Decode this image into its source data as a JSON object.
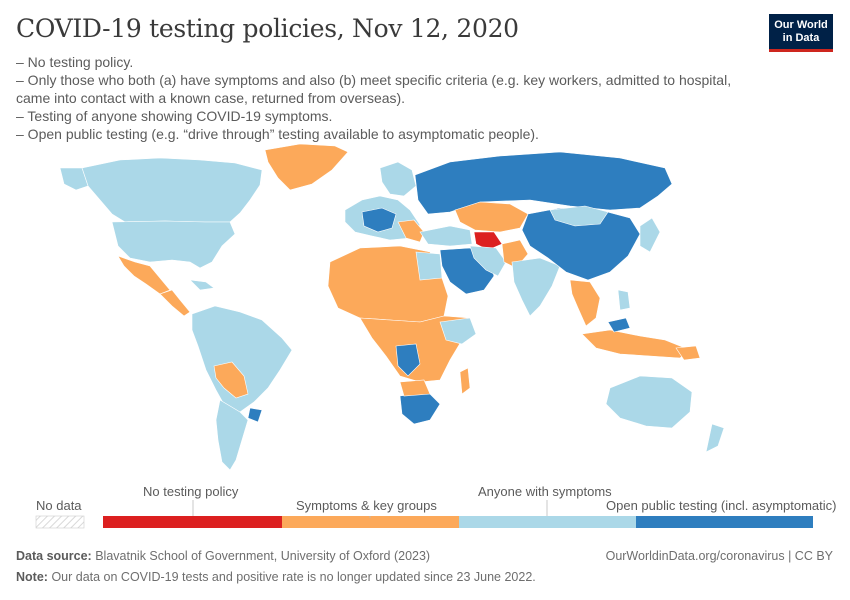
{
  "title": "COVID-19 testing policies, Nov 12, 2020",
  "logo": {
    "line1": "Our World",
    "line2": "in Data"
  },
  "subtitle": [
    "– No testing policy.",
    "– Only those who both (a) have symptoms and also (b) meet specific criteria (e.g. key workers, admitted to hospital, came into contact with a known case, returned from overseas).",
    "– Testing of anyone showing COVID-19 symptoms.",
    "– Open public testing (e.g. “drive through” testing available to asymptomatic people)."
  ],
  "colors": {
    "no_policy": "#dc2020",
    "symptoms_key": "#fca95a",
    "anyone_symptoms": "#abd8e8",
    "open_public": "#2e7ebf",
    "no_data": "#e0e0e0"
  },
  "legend": {
    "no_data": "No data",
    "items": [
      "No testing policy",
      "Symptoms & key groups",
      "Anyone with symptoms",
      "Open public testing (incl. asymptomatic)"
    ]
  },
  "footer": {
    "source_label": "Data source:",
    "source_text": "Blavatnik School of Government, University of Oxford (2023)",
    "note_label": "Note:",
    "note_text": "Our data on COVID-19 tests and positive rate is no longer updated since 23 June 2022.",
    "credit": "OurWorldinData.org/coronavirus | CC BY"
  }
}
